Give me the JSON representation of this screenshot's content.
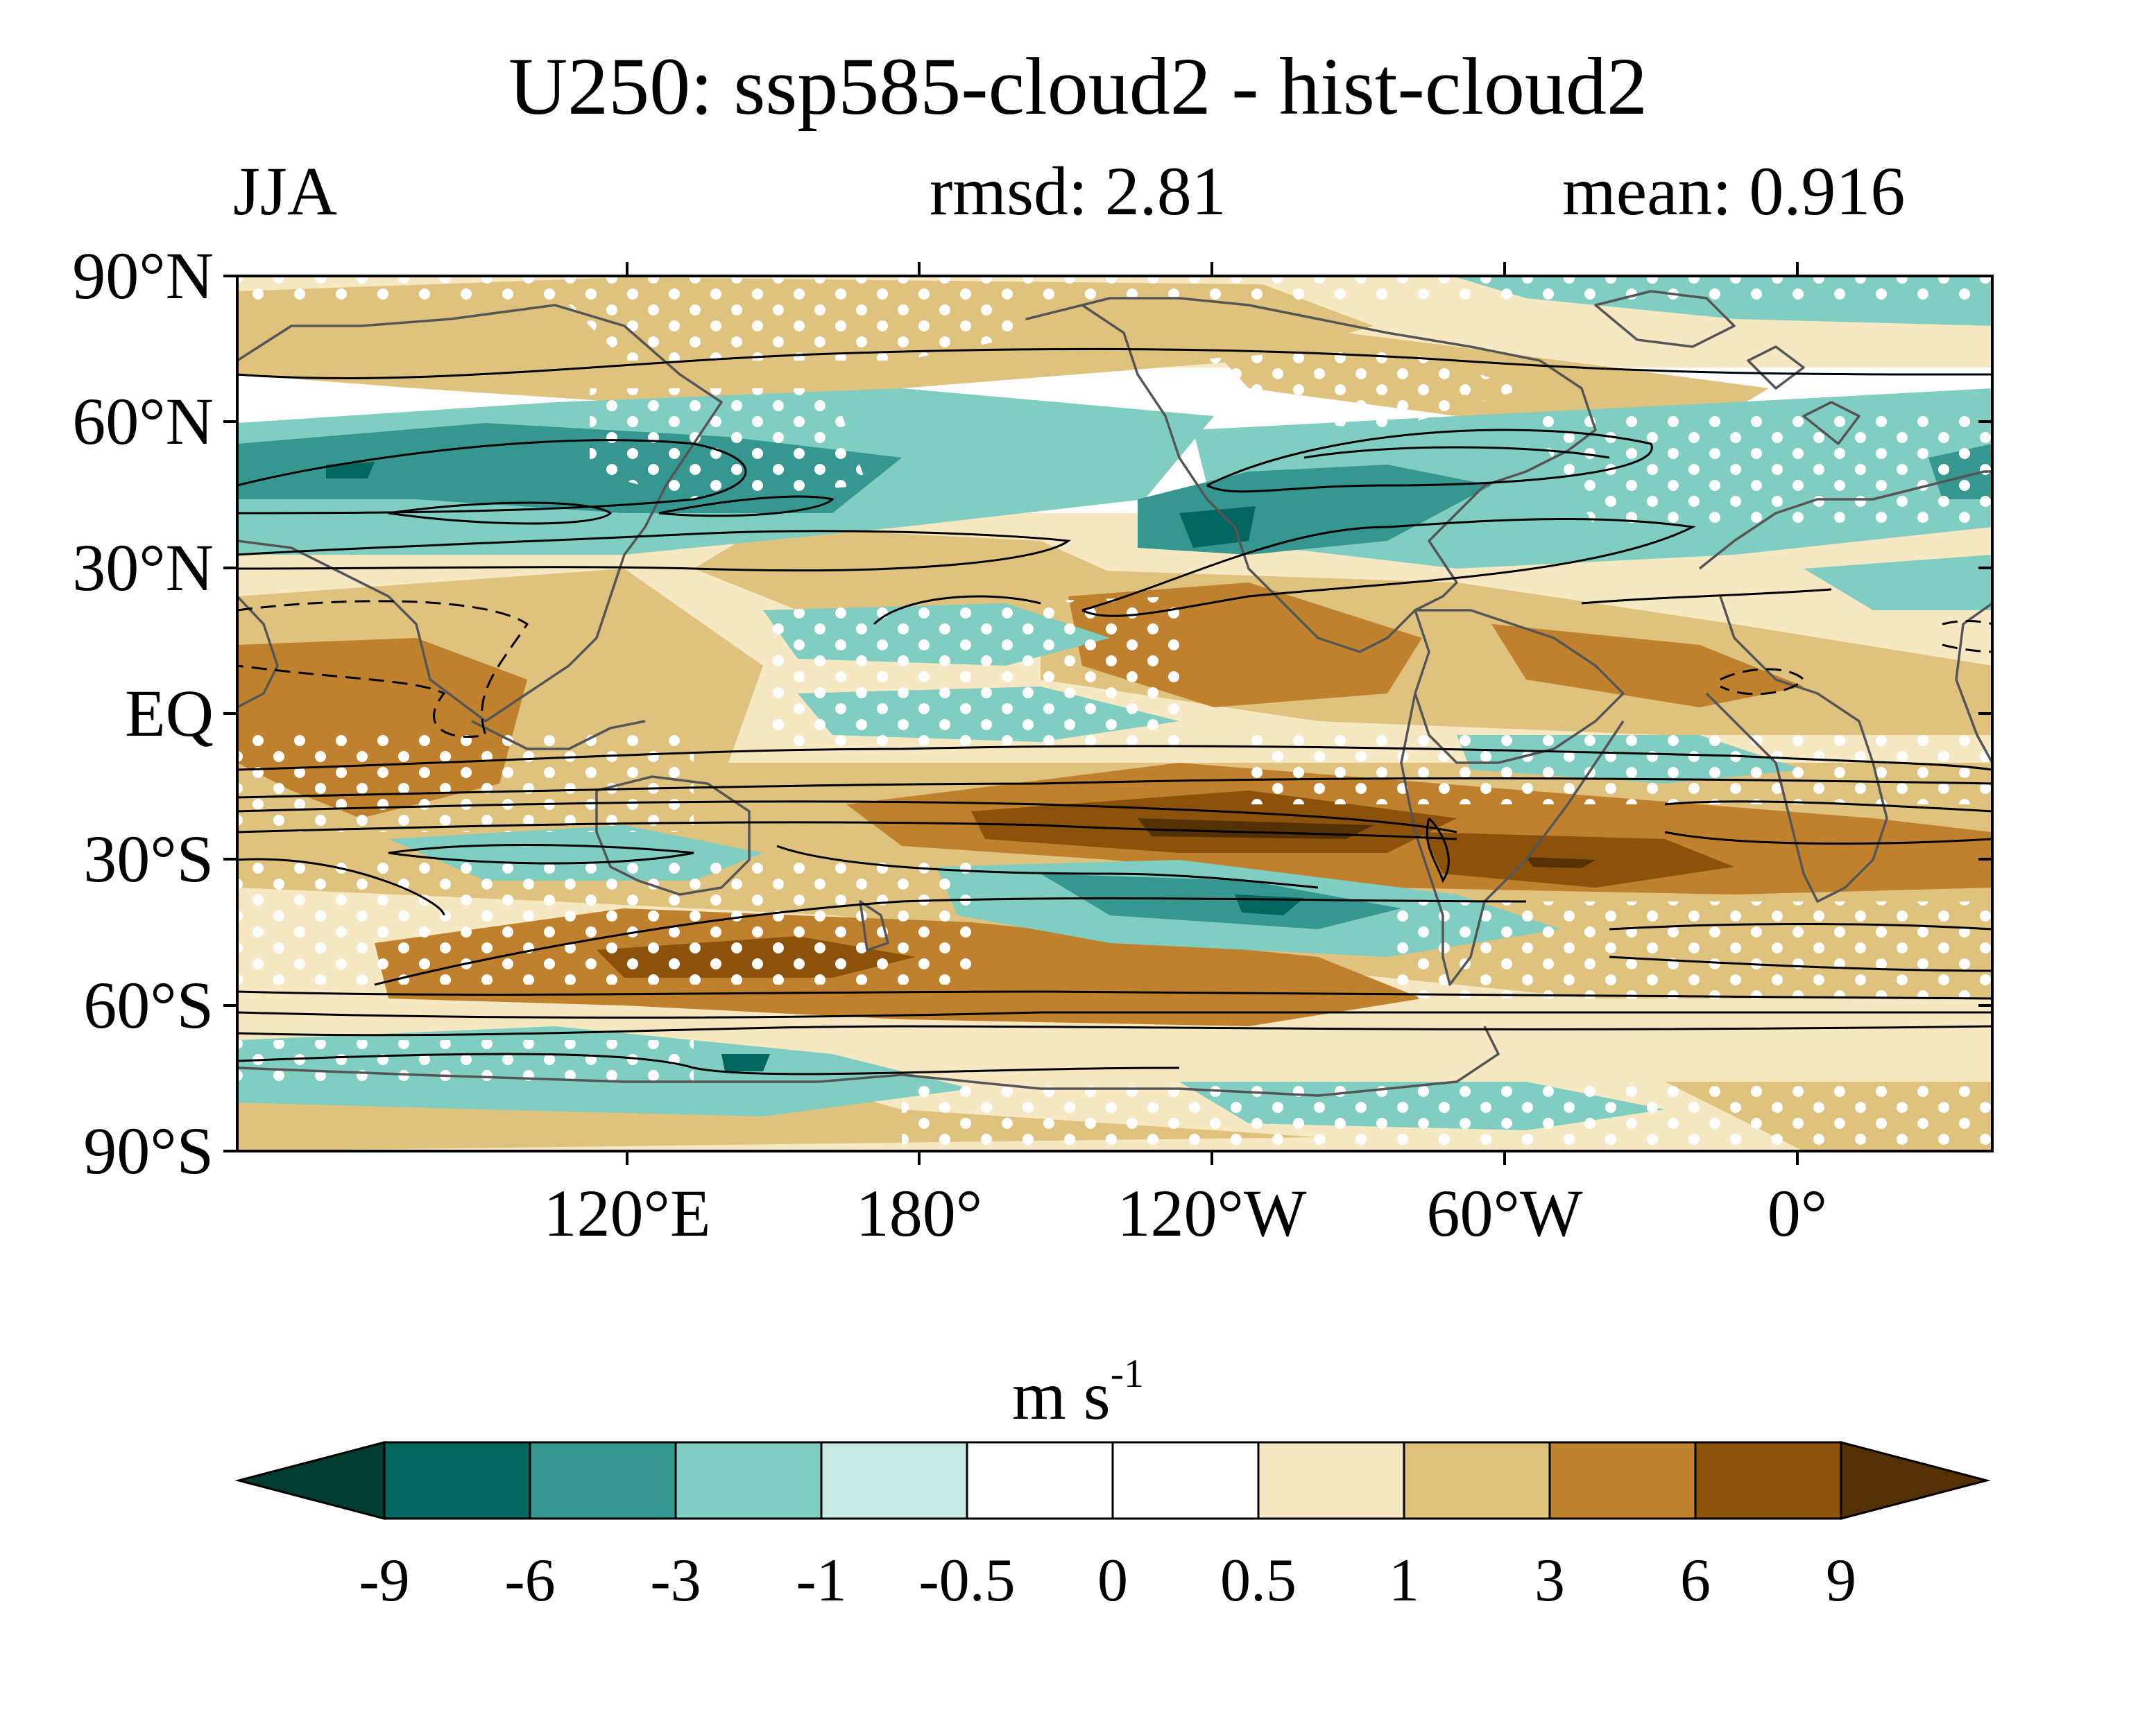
{
  "title": "U250: ssp585-cloud2 - hist-cloud2",
  "season": "JJA",
  "rmsd": "rmsd: 2.81",
  "mean": "mean: 0.916",
  "lat_labels": [
    "90°N",
    "60°N",
    "30°N",
    "EQ",
    "30°S",
    "60°S",
    "90°S"
  ],
  "lon_labels": [
    "120°E",
    "180°",
    "120°W",
    "60°W",
    "0°"
  ],
  "colorbar": {
    "unit_base": "m s",
    "unit_exp": "-1",
    "tick_labels": [
      "-9",
      "-6",
      "-3",
      "-1",
      "-0.5",
      "0",
      "0.5",
      "1",
      "3",
      "6",
      "9"
    ],
    "colors": [
      "#003c30",
      "#01665e",
      "#35978f",
      "#80cdc1",
      "#c7eae5",
      "#ffffff",
      "#ffffff",
      "#f6e8c3",
      "#dfc27d",
      "#bf812d",
      "#8c510a",
      "#543005"
    ]
  }
}
